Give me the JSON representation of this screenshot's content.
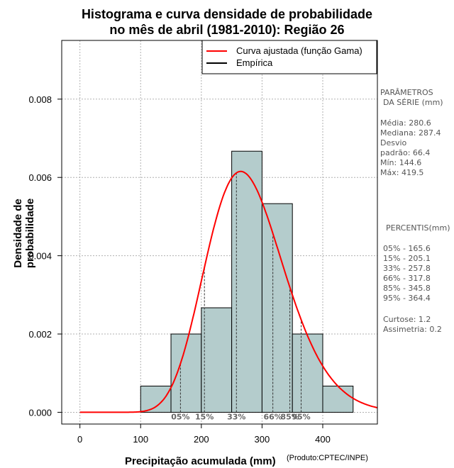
{
  "title_line1": "Histograma e curva densidade de probabilidade",
  "title_line2": "no mês de abril (1981-2010): Região 26",
  "credit": "(Produto:CPTEC/INPE)",
  "series_stats": {
    "heading_line1": "PARÂMETROS",
    "heading_line2": "DA SÉRIE (mm)",
    "media": "Média:  280.6",
    "mediana": "Mediana:  287.4",
    "desvio_line1": "Desvio",
    "desvio_line2": "padrão:  66.4",
    "min": "Mín:  144.6",
    "max": "Máx:  419.5"
  },
  "percentiles_panel": {
    "heading": "PERCENTIS(mm)",
    "p05": "05% -  165.6",
    "p15": "15% -  205.1",
    "p33": "33% -  257.8",
    "p66": "66% -  317.8",
    "p85": "85% -  345.8",
    "p95": "95% -  364.4",
    "curtose": "Curtose:  1.2",
    "assimetria": "Assimetria:  0.2"
  },
  "colors": {
    "bars": "#b4cccc",
    "curve": "#ff0000",
    "empirical": "#000000",
    "grid": "#b0b0b0"
  },
  "chart_data": {
    "type": "bar",
    "xlabel": "Precipitação acumulada (mm)",
    "ylabel": "Densidade de probabilidade",
    "xlim": [
      -30,
      490
    ],
    "ylim": [
      -0.0003,
      0.0095
    ],
    "xticks": [
      0,
      100,
      200,
      300,
      400
    ],
    "yticks": [
      0.0,
      0.002,
      0.004,
      0.006,
      0.008
    ],
    "ytick_labels": [
      "0.000",
      "0.002",
      "0.004",
      "0.006",
      "0.008"
    ],
    "bins": [
      {
        "start": 100,
        "end": 150,
        "density": 0.00067
      },
      {
        "start": 150,
        "end": 200,
        "density": 0.002
      },
      {
        "start": 200,
        "end": 250,
        "density": 0.00267
      },
      {
        "start": 250,
        "end": 300,
        "density": 0.00667
      },
      {
        "start": 300,
        "end": 350,
        "density": 0.00533
      },
      {
        "start": 350,
        "end": 400,
        "density": 0.002
      },
      {
        "start": 400,
        "end": 450,
        "density": 0.00067
      }
    ],
    "gamma_fit": {
      "mean": 280.6,
      "sd": 66.4
    },
    "percentiles": [
      {
        "label": "05%",
        "value": 165.6
      },
      {
        "label": "15%",
        "value": 205.1
      },
      {
        "label": "33%",
        "value": 257.8
      },
      {
        "label": "66%",
        "value": 317.8
      },
      {
        "label": "85%",
        "value": 345.8
      },
      {
        "label": "95%",
        "value": 364.4
      }
    ],
    "legend": [
      "Curva ajustada (função Gama)",
      "Empírica"
    ],
    "legend_position": "top-right",
    "grid": true
  }
}
